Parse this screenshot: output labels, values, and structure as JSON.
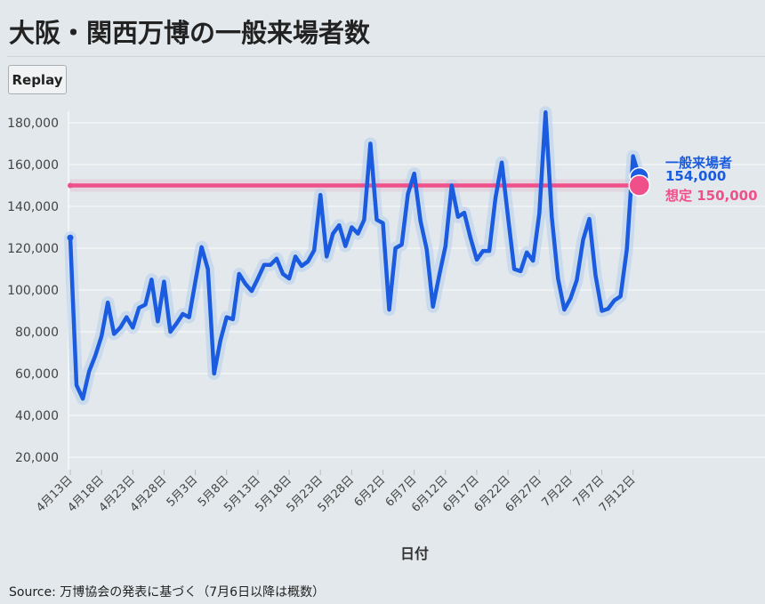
{
  "title": "大阪・関西万博の一般来場者数",
  "replay_label": "Replay",
  "source": "Source: 万博協会の発表に基づく（7月6日以降は概数）",
  "colors": {
    "visitors": "#1a5be0",
    "target": "#f0508a",
    "background": "#e2e8eb"
  },
  "chart_data": {
    "type": "line",
    "title": "大阪・関西万博の一般来場者数",
    "xlabel": "日付",
    "ylabel": "",
    "ylim": [
      13000,
      185000
    ],
    "yticks": [
      20000,
      40000,
      60000,
      80000,
      100000,
      120000,
      140000,
      160000,
      180000
    ],
    "ytick_labels": [
      "20,000",
      "40,000",
      "60,000",
      "80,000",
      "100,000",
      "120,000",
      "140,000",
      "160,000",
      "180,000"
    ],
    "x_start": "2025-04-13",
    "xtick_labels": [
      "4月13日",
      "4月18日",
      "4月23日",
      "4月28日",
      "5月3日",
      "5月8日",
      "5月13日",
      "5月18日",
      "5月23日",
      "5月28日",
      "6月2日",
      "6月7日",
      "6月12日",
      "6月17日",
      "6月22日",
      "6月27日",
      "7月2日",
      "7月7日",
      "7月12日"
    ],
    "grid": true,
    "series": [
      {
        "name": "一般来場者",
        "end_label": "154,000",
        "values": [
          125000,
          54500,
          48000,
          61000,
          68500,
          78000,
          94000,
          79000,
          82000,
          87000,
          82000,
          91500,
          93000,
          105000,
          85000,
          104000,
          80000,
          84000,
          88500,
          87000,
          104000,
          120500,
          110000,
          60000,
          75700,
          87000,
          86000,
          107700,
          103000,
          99500,
          105500,
          112000,
          112000,
          115000,
          107700,
          105500,
          116000,
          111500,
          113600,
          119000,
          145500,
          116000,
          127000,
          131000,
          121000,
          130000,
          127000,
          133600,
          170000,
          133600,
          132000,
          90600,
          120000,
          121700,
          146000,
          155700,
          133000,
          119500,
          92000,
          107000,
          121000,
          150000,
          135000,
          137000,
          125000,
          114500,
          118700,
          118700,
          144000,
          161000,
          135000,
          110000,
          109000,
          118000,
          114000,
          136600,
          185000,
          135000,
          105500,
          90600,
          96000,
          104700,
          124000,
          134000,
          107000,
          90000,
          91000,
          95000,
          97000,
          119500,
          164000,
          154000
        ]
      },
      {
        "name": "想定",
        "end_label": "想定 150,000",
        "constant": 150000
      }
    ]
  }
}
